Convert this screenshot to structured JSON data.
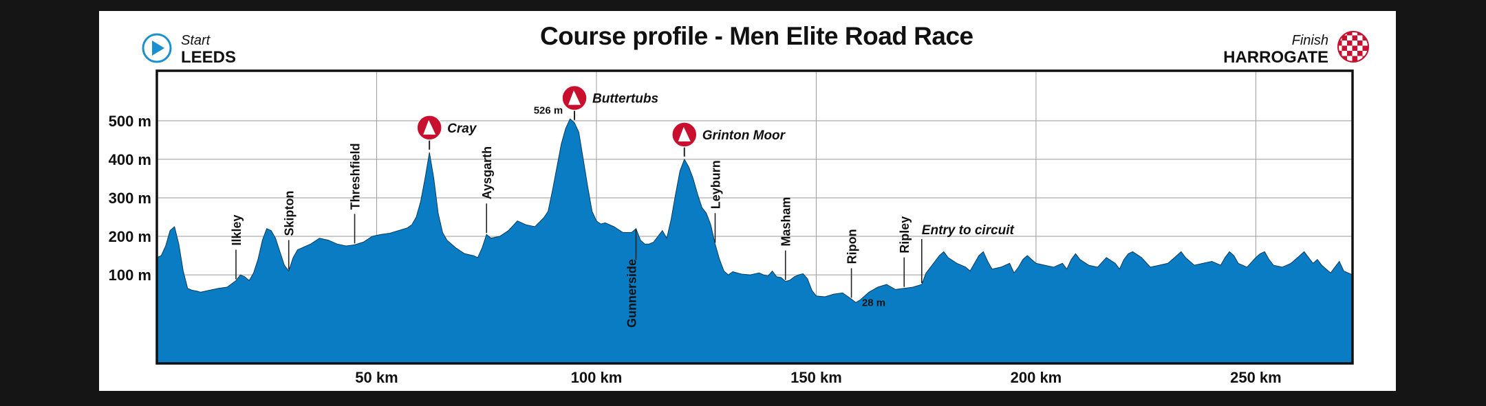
{
  "header": {
    "title": "Course profile - Men Elite Road Race",
    "start_caption": "Start",
    "start_name": "LEEDS",
    "finish_caption": "Finish",
    "finish_name": "HARROGATE"
  },
  "colors": {
    "profile_fill": "#0a7cc4",
    "climb_marker": "#c8102e",
    "start_icon": "#1b8fd0",
    "frame": "#111111",
    "background": "#151515"
  },
  "icons": {
    "start": "play-circle-icon",
    "finish": "checkered-flag-icon",
    "climb": "mountain-icon"
  },
  "chart_data": {
    "type": "area",
    "title": "Course profile - Men Elite Road Race",
    "xlabel": "",
    "ylabel": "",
    "x_unit": "km",
    "y_unit": "m",
    "xlim": [
      0,
      272
    ],
    "ylim": [
      -130,
      630
    ],
    "x_ticks": [
      50,
      100,
      150,
      200,
      250
    ],
    "x_tick_labels": [
      "50 km",
      "100 km",
      "150 km",
      "200 km",
      "250 km"
    ],
    "y_ticks": [
      100,
      200,
      300,
      400,
      500
    ],
    "y_tick_labels": [
      "100 m",
      "200 m",
      "300 m",
      "400 m",
      "500 m"
    ],
    "grid": true,
    "series": [
      {
        "x": [
          0,
          1,
          2,
          3,
          4,
          5,
          6,
          7,
          8,
          9,
          10,
          12,
          14,
          16,
          18,
          19,
          20,
          21,
          22,
          23,
          24,
          25,
          26,
          27,
          28,
          29,
          30,
          31,
          32,
          33,
          35,
          37,
          39,
          41,
          43,
          45,
          47,
          49,
          51,
          53,
          55,
          57,
          58,
          59,
          60,
          61,
          62,
          63,
          64,
          65,
          66,
          67,
          68,
          70,
          72,
          73,
          74,
          75,
          76,
          78,
          80,
          82,
          84,
          86,
          88,
          89,
          90,
          91,
          92,
          93,
          94,
          95,
          96,
          97,
          98,
          99,
          100,
          101,
          102,
          104,
          106,
          108,
          109,
          110,
          111,
          112,
          113,
          114,
          115,
          116,
          117,
          118,
          119,
          120,
          121,
          122,
          123,
          124,
          125,
          126,
          127,
          128,
          129,
          130,
          131,
          133,
          135,
          137,
          138,
          139,
          140,
          141,
          142,
          143,
          144,
          145,
          146,
          147,
          148,
          149,
          150,
          152,
          154,
          156,
          158,
          159,
          160,
          162,
          164,
          166,
          168,
          170,
          172,
          174,
          175,
          176,
          177,
          178,
          179,
          180,
          182,
          184,
          185,
          186,
          187,
          188,
          189,
          190,
          192,
          194,
          195,
          196,
          197,
          198,
          200,
          202,
          204,
          206,
          207,
          208,
          209,
          210,
          212,
          214,
          216,
          218,
          219,
          220,
          221,
          222,
          224,
          226,
          228,
          230,
          231,
          232,
          233,
          234,
          236,
          238,
          240,
          242,
          243,
          244,
          245,
          246,
          248,
          250,
          251,
          252,
          253,
          254,
          256,
          258,
          259,
          260,
          261,
          262,
          263,
          264,
          265,
          266,
          267,
          268,
          269,
          270,
          271,
          272
        ],
        "y": [
          145,
          150,
          175,
          215,
          225,
          180,
          110,
          65,
          60,
          58,
          55,
          60,
          65,
          68,
          85,
          100,
          95,
          85,
          105,
          140,
          190,
          220,
          215,
          195,
          160,
          125,
          110,
          145,
          165,
          170,
          180,
          195,
          190,
          180,
          175,
          178,
          185,
          200,
          205,
          208,
          215,
          222,
          230,
          250,
          290,
          350,
          418,
          350,
          260,
          210,
          190,
          180,
          170,
          155,
          150,
          145,
          170,
          205,
          195,
          200,
          215,
          240,
          230,
          225,
          248,
          265,
          320,
          380,
          440,
          480,
          505,
          495,
          470,
          400,
          330,
          265,
          240,
          232,
          235,
          225,
          210,
          210,
          220,
          190,
          180,
          180,
          185,
          200,
          215,
          195,
          245,
          310,
          370,
          400,
          380,
          350,
          310,
          275,
          260,
          230,
          180,
          140,
          110,
          100,
          108,
          102,
          100,
          105,
          100,
          97,
          110,
          95,
          93,
          83,
          86,
          95,
          100,
          103,
          90,
          60,
          45,
          43,
          50,
          53,
          37,
          28,
          35,
          55,
          68,
          75,
          62,
          65,
          68,
          75,
          105,
          120,
          135,
          150,
          160,
          145,
          130,
          120,
          110,
          130,
          150,
          160,
          135,
          115,
          120,
          130,
          105,
          120,
          140,
          150,
          130,
          125,
          120,
          130,
          115,
          140,
          155,
          140,
          125,
          120,
          145,
          130,
          115,
          140,
          155,
          160,
          145,
          120,
          125,
          130,
          140,
          150,
          160,
          145,
          125,
          130,
          135,
          125,
          145,
          160,
          150,
          130,
          120,
          145,
          155,
          160,
          140,
          125,
          120,
          130,
          140,
          150,
          160,
          145,
          130,
          140,
          125,
          115,
          105,
          120,
          135,
          110,
          105,
          100
        ]
      }
    ],
    "town_labels": [
      {
        "name": "Ilkley",
        "km": 18
      },
      {
        "name": "Skipton",
        "km": 30
      },
      {
        "name": "Threshfield",
        "km": 45
      },
      {
        "name": "Aysgarth",
        "km": 75
      },
      {
        "name": "Gunnerside",
        "km": 109
      },
      {
        "name": "Leyburn",
        "km": 127
      },
      {
        "name": "Masham",
        "km": 143
      },
      {
        "name": "Ripon",
        "km": 158
      },
      {
        "name": "Ripley",
        "km": 170
      }
    ],
    "climbs": [
      {
        "name": "Cray",
        "km": 62
      },
      {
        "name": "Buttertubs",
        "km": 95
      },
      {
        "name": "Grinton Moor",
        "km": 120
      }
    ],
    "annotations": [
      {
        "text": "526 m",
        "km": 93
      },
      {
        "text": "28 m",
        "km": 159
      },
      {
        "text": "Entry to circuit",
        "km": 174
      }
    ]
  }
}
